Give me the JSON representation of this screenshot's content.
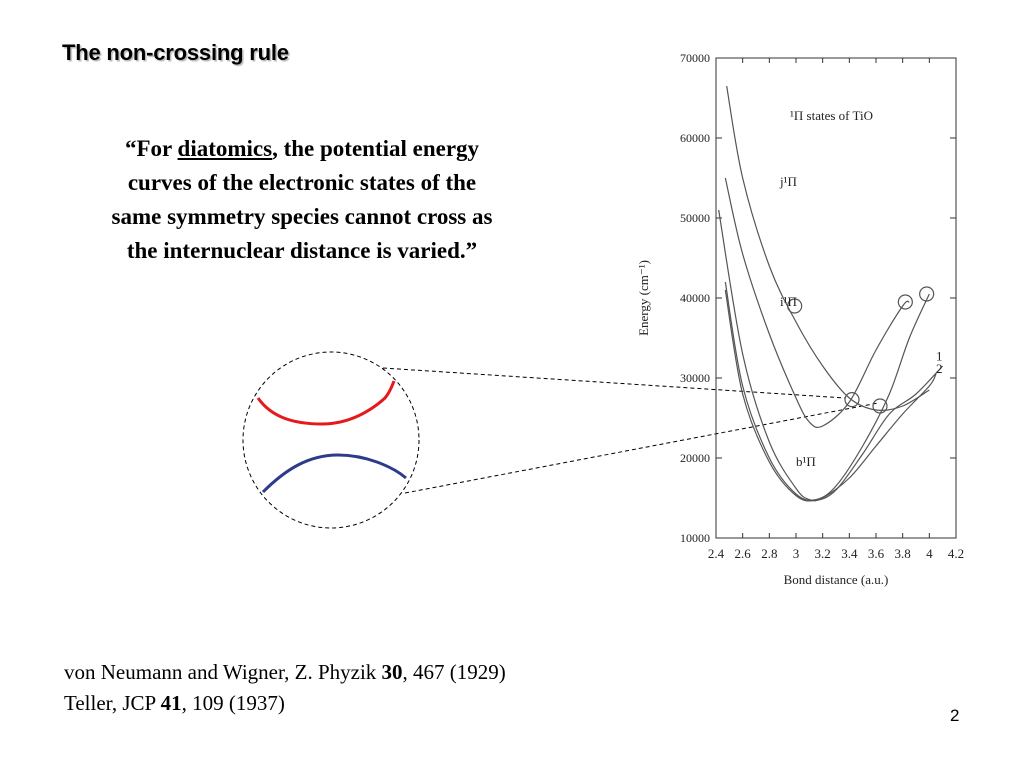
{
  "slide": {
    "title": "The non-crossing rule",
    "quote": {
      "open": "“For ",
      "term": "diatomics",
      "rest_line1": ", the potential energy",
      "line2": "curves of the electronic states of the",
      "line3": "same symmetry species cannot cross as",
      "line4": "the internuclear distance is varied.”"
    },
    "references": [
      {
        "pre": "von Neumann and Wigner, Z. Phyzik ",
        "vol": "30",
        "post": ", 467 (1929)"
      },
      {
        "pre": "Teller, JCP ",
        "vol": "41",
        "post": ", 109 (1937)"
      }
    ],
    "page_number": "2"
  },
  "inset": {
    "upper_curve_color": "#e41a1c",
    "lower_curve_color": "#2e3a8c"
  },
  "chart_data": {
    "type": "line",
    "title": "¹Π states of TiO",
    "xlabel": "Bond distance (a.u.)",
    "ylabel": "Energy (cm⁻¹)",
    "xlim": [
      2.4,
      4.2
    ],
    "ylim": [
      10000,
      70000
    ],
    "x_ticks": [
      "2.4",
      "2.6",
      "2.8",
      "3",
      "3.2",
      "3.4",
      "3.6",
      "3.8",
      "4",
      "4.2"
    ],
    "y_ticks": [
      "10000",
      "20000",
      "30000",
      "40000",
      "50000",
      "60000",
      "70000"
    ],
    "curve_labels": [
      {
        "text": "j¹Π",
        "x": 2.88,
        "y": 54000
      },
      {
        "text": "i¹Π",
        "x": 2.88,
        "y": 39000
      },
      {
        "text": "b¹Π",
        "x": 3.0,
        "y": 19000
      },
      {
        "text": "1",
        "x": 4.05,
        "y": 32200
      },
      {
        "text": "2",
        "x": 4.05,
        "y": 30600
      }
    ],
    "series": [
      {
        "values": [
          [
            2.48,
            66500
          ],
          [
            2.6,
            55000
          ],
          [
            2.8,
            44000
          ],
          [
            3.0,
            37000
          ],
          [
            3.2,
            31500
          ],
          [
            3.4,
            27500
          ],
          [
            3.6,
            26000
          ],
          [
            3.8,
            26500
          ],
          [
            4.0,
            28500
          ]
        ]
      },
      {
        "values": [
          [
            2.47,
            55000
          ],
          [
            2.6,
            45500
          ],
          [
            2.8,
            35500
          ],
          [
            3.0,
            27500
          ],
          [
            3.1,
            24500
          ],
          [
            3.2,
            24000
          ],
          [
            3.4,
            27000
          ],
          [
            3.6,
            33500
          ],
          [
            3.8,
            39000
          ],
          [
            3.85,
            39500
          ]
        ]
      },
      {
        "values": [
          [
            2.42,
            51000
          ],
          [
            2.6,
            33000
          ],
          [
            2.8,
            22000
          ],
          [
            3.0,
            16200
          ],
          [
            3.1,
            14800
          ],
          [
            3.2,
            15000
          ],
          [
            3.4,
            17500
          ],
          [
            3.6,
            21500
          ],
          [
            3.8,
            25500
          ],
          [
            4.0,
            29000
          ],
          [
            4.05,
            30500
          ]
        ]
      },
      {
        "values": [
          [
            2.47,
            42000
          ],
          [
            2.6,
            29000
          ],
          [
            2.8,
            20000
          ],
          [
            3.0,
            15500
          ],
          [
            3.15,
            14800
          ],
          [
            3.3,
            16500
          ],
          [
            3.5,
            21500
          ],
          [
            3.7,
            28000
          ],
          [
            3.85,
            35000
          ],
          [
            4.0,
            40500
          ]
        ]
      },
      {
        "values": [
          [
            2.47,
            41000
          ],
          [
            2.6,
            28000
          ],
          [
            2.8,
            19500
          ],
          [
            3.0,
            15300
          ],
          [
            3.15,
            14700
          ],
          [
            3.3,
            16000
          ],
          [
            3.5,
            20500
          ],
          [
            3.7,
            25500
          ],
          [
            3.9,
            28000
          ],
          [
            4.1,
            31500
          ]
        ]
      }
    ],
    "avoided_crossing_markers": [
      {
        "x": 2.99,
        "y": 39000
      },
      {
        "x": 3.82,
        "y": 39500
      },
      {
        "x": 3.98,
        "y": 40500
      },
      {
        "x": 3.42,
        "y": 27300
      },
      {
        "x": 3.63,
        "y": 26500
      }
    ]
  }
}
